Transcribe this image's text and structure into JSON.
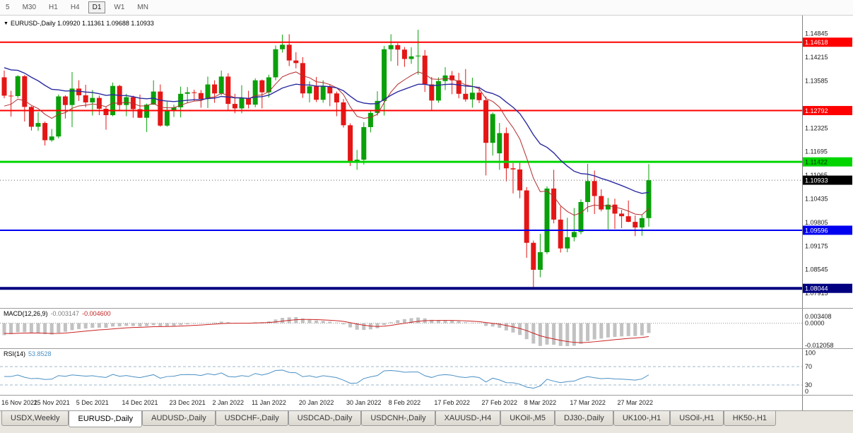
{
  "toolbar": {
    "items": [
      {
        "label": "5",
        "active": false
      },
      {
        "label": "M30",
        "active": false
      },
      {
        "label": "H1",
        "active": false
      },
      {
        "label": "H4",
        "active": false
      },
      {
        "label": "D1",
        "active": true
      },
      {
        "label": "W1",
        "active": false
      },
      {
        "label": "MN",
        "active": false
      }
    ]
  },
  "chart_data": {
    "type": "candlestick",
    "symbol": "EURUSD-,Daily",
    "header": "EURUSD-,Daily  1.09920 1.11361 1.09688 1.10933",
    "ohlc_display": [
      "1.09920",
      "1.11361",
      "1.09688",
      "1.10933"
    ],
    "price_range": [
      1.0752,
      1.1533
    ],
    "colors": {
      "bull": "#0AA00A",
      "bear": "#E41616"
    },
    "y_axis_ticks": [
      "1.14845",
      "1.14215",
      "1.13585",
      "1.12325",
      "1.11695",
      "1.11065",
      "1.10435",
      "1.09805",
      "1.09175",
      "1.08545",
      "1.07915"
    ],
    "hlines": [
      {
        "price": 1.14618,
        "label": "1.14618",
        "color": "#FF0000",
        "width": 2,
        "text_color": "#FFFFFF"
      },
      {
        "price": 1.12792,
        "label": "1.12792",
        "color": "#FF0000",
        "width": 2,
        "text_color": "#FFFFFF"
      },
      {
        "price": 1.11422,
        "label": "1.11422",
        "color": "#00D500",
        "width": 3,
        "text_color": "#003300"
      },
      {
        "price": 1.09596,
        "label": "1.09596",
        "color": "#0000F0",
        "width": 2,
        "text_color": "#FFFFFF"
      },
      {
        "price": 1.08044,
        "label": "1.08044",
        "color": "#000080",
        "width": 4,
        "text_color": "#FFFFFF"
      }
    ],
    "current_price": {
      "price": 1.10933,
      "label": "1.10933",
      "bg": "#000000",
      "text_color": "#FFFFFF"
    },
    "moving_averages": [
      {
        "name": "ma-fast-red",
        "color": "#B22E2E",
        "period": 10,
        "seed": 1.1285,
        "width": 1
      },
      {
        "name": "ma-slow-blue",
        "color": "#2B2BA0",
        "period": 25,
        "seed": 1.14,
        "width": 1.4
      }
    ],
    "x_labels": [
      {
        "bar": 0,
        "label": "16 Nov 2021"
      },
      {
        "bar": 7,
        "label": "25 Nov 2021"
      },
      {
        "bar": 13,
        "label": "5 Dec 2021"
      },
      {
        "bar": 20,
        "label": "14 Dec 2021"
      },
      {
        "bar": 27,
        "label": "23 Dec 2021"
      },
      {
        "bar": 33,
        "label": "2 Jan 2022"
      },
      {
        "bar": 39,
        "label": "11 Jan 2022"
      },
      {
        "bar": 46,
        "label": "20 Jan 2022"
      },
      {
        "bar": 53,
        "label": "30 Jan 2022"
      },
      {
        "bar": 59,
        "label": "8 Feb 2022"
      },
      {
        "bar": 66,
        "label": "17 Feb 2022"
      },
      {
        "bar": 73,
        "label": "27 Feb 2022"
      },
      {
        "bar": 79,
        "label": "8 Mar 2022"
      },
      {
        "bar": 86,
        "label": "17 Mar 2022"
      },
      {
        "bar": 93,
        "label": "27 Mar 2022"
      }
    ],
    "candles": [
      [
        1.1368,
        1.1386,
        1.1312,
        1.1319
      ],
      [
        1.1319,
        1.1332,
        1.1263,
        1.1318
      ],
      [
        1.1318,
        1.1374,
        1.1313,
        1.1371
      ],
      [
        1.1371,
        1.1374,
        1.125,
        1.1289
      ],
      [
        1.1289,
        1.1291,
        1.1226,
        1.1236
      ],
      [
        1.1236,
        1.1275,
        1.1225,
        1.1246
      ],
      [
        1.1246,
        1.125,
        1.1186,
        1.12
      ],
      [
        1.12,
        1.123,
        1.1196,
        1.121
      ],
      [
        1.121,
        1.1322,
        1.1205,
        1.1317
      ],
      [
        1.1317,
        1.132,
        1.1258,
        1.1294
      ],
      [
        1.1294,
        1.1382,
        1.1235,
        1.1338
      ],
      [
        1.1338,
        1.136,
        1.1305,
        1.132
      ],
      [
        1.132,
        1.1348,
        1.1288,
        1.1301
      ],
      [
        1.1301,
        1.1334,
        1.1266,
        1.1313
      ],
      [
        1.1313,
        1.1319,
        1.1267,
        1.1284
      ],
      [
        1.1284,
        1.129,
        1.1228,
        1.1267
      ],
      [
        1.1267,
        1.1354,
        1.1264,
        1.1345
      ],
      [
        1.1345,
        1.1348,
        1.128,
        1.1294
      ],
      [
        1.1294,
        1.1324,
        1.1264,
        1.1315
      ],
      [
        1.1315,
        1.1319,
        1.126,
        1.1283
      ],
      [
        1.1283,
        1.1322,
        1.1259,
        1.126
      ],
      [
        1.126,
        1.1298,
        1.1222,
        1.1295
      ],
      [
        1.1295,
        1.136,
        1.1295,
        1.133
      ],
      [
        1.133,
        1.1349,
        1.1236,
        1.1239
      ],
      [
        1.1239,
        1.1303,
        1.1236,
        1.128
      ],
      [
        1.128,
        1.1295,
        1.1262,
        1.1288
      ],
      [
        1.1288,
        1.1343,
        1.1261,
        1.1324
      ],
      [
        1.1324,
        1.1342,
        1.1299,
        1.1328
      ],
      [
        1.1328,
        1.1335,
        1.1305,
        1.1326
      ],
      [
        1.1326,
        1.1334,
        1.1287,
        1.131
      ],
      [
        1.131,
        1.137,
        1.1286,
        1.1349
      ],
      [
        1.1349,
        1.136,
        1.13,
        1.1325
      ],
      [
        1.1325,
        1.1386,
        1.132,
        1.137
      ],
      [
        1.137,
        1.1379,
        1.1279,
        1.1297
      ],
      [
        1.1297,
        1.1324,
        1.1272,
        1.1285
      ],
      [
        1.1285,
        1.1347,
        1.1272,
        1.1313
      ],
      [
        1.1313,
        1.1332,
        1.1285,
        1.1295
      ],
      [
        1.1295,
        1.1365,
        1.1288,
        1.136
      ],
      [
        1.136,
        1.1362,
        1.1285,
        1.1328
      ],
      [
        1.1328,
        1.1375,
        1.1314,
        1.1368
      ],
      [
        1.1368,
        1.1453,
        1.136,
        1.1443
      ],
      [
        1.1443,
        1.1482,
        1.1434,
        1.1455
      ],
      [
        1.1455,
        1.1483,
        1.1398,
        1.1413
      ],
      [
        1.1413,
        1.1435,
        1.1392,
        1.1406
      ],
      [
        1.1406,
        1.1422,
        1.1313,
        1.1325
      ],
      [
        1.1325,
        1.1357,
        1.1301,
        1.1344
      ],
      [
        1.1344,
        1.1369,
        1.1302,
        1.1308
      ],
      [
        1.1308,
        1.136,
        1.13,
        1.1344
      ],
      [
        1.1344,
        1.1349,
        1.1291,
        1.1325
      ],
      [
        1.1325,
        1.133,
        1.1264,
        1.1301
      ],
      [
        1.1301,
        1.131,
        1.1234,
        1.124
      ],
      [
        1.124,
        1.1245,
        1.1131,
        1.1144
      ],
      [
        1.1144,
        1.1174,
        1.1121,
        1.1148
      ],
      [
        1.1148,
        1.1248,
        1.1135,
        1.1235
      ],
      [
        1.1235,
        1.1279,
        1.1221,
        1.1273
      ],
      [
        1.1273,
        1.1331,
        1.1266,
        1.1305
      ],
      [
        1.1305,
        1.1452,
        1.1266,
        1.1443
      ],
      [
        1.1443,
        1.1483,
        1.1411,
        1.1454
      ],
      [
        1.1454,
        1.1459,
        1.1399,
        1.1442
      ],
      [
        1.1442,
        1.1449,
        1.1396,
        1.1417
      ],
      [
        1.1417,
        1.1448,
        1.1404,
        1.1424
      ],
      [
        1.1424,
        1.1495,
        1.1375,
        1.1426
      ],
      [
        1.1426,
        1.1441,
        1.1329,
        1.1349
      ],
      [
        1.1349,
        1.1369,
        1.1278,
        1.1306
      ],
      [
        1.1306,
        1.1368,
        1.13,
        1.1358
      ],
      [
        1.1358,
        1.1395,
        1.1334,
        1.1373
      ],
      [
        1.1373,
        1.1385,
        1.1323,
        1.136
      ],
      [
        1.136,
        1.138,
        1.1312,
        1.1324
      ],
      [
        1.1324,
        1.139,
        1.1303,
        1.1309
      ],
      [
        1.1309,
        1.1367,
        1.1287,
        1.1327
      ],
      [
        1.1327,
        1.1343,
        1.1299,
        1.1307
      ],
      [
        1.1307,
        1.1317,
        1.1106,
        1.1193
      ],
      [
        1.1193,
        1.1274,
        1.1159,
        1.127
      ],
      [
        1.1165,
        1.1246,
        1.1121,
        1.1219
      ],
      [
        1.1219,
        1.1234,
        1.109,
        1.1125
      ],
      [
        1.1125,
        1.1139,
        1.1058,
        1.1122
      ],
      [
        1.1122,
        1.1144,
        1.1045,
        1.1066
      ],
      [
        1.1066,
        1.1075,
        1.0886,
        1.0926
      ],
      [
        1.0926,
        1.0932,
        1.0806,
        1.0854
      ],
      [
        1.0854,
        1.095,
        1.0834,
        1.0901
      ],
      [
        1.0901,
        1.1077,
        1.0896,
        1.1071
      ],
      [
        1.1071,
        1.1121,
        1.0978,
        1.0988
      ],
      [
        1.0988,
        1.1023,
        1.09,
        1.0911
      ],
      [
        1.0911,
        1.0993,
        1.0901,
        1.0941
      ],
      [
        1.0941,
        1.1019,
        1.093,
        1.0955
      ],
      [
        1.0955,
        1.1042,
        1.0949,
        1.1035
      ],
      [
        1.1035,
        1.1137,
        1.1008,
        1.1091
      ],
      [
        1.1091,
        1.1119,
        1.1003,
        1.1051
      ],
      [
        1.1051,
        1.1069,
        1.101,
        1.1015
      ],
      [
        1.1015,
        1.1046,
        1.0962,
        1.1028
      ],
      [
        1.1028,
        1.1044,
        1.0963,
        1.1004
      ],
      [
        1.1004,
        1.1014,
        1.0965,
        1.0997
      ],
      [
        1.0997,
        1.1039,
        1.0981,
        1.0982
      ],
      [
        1.0982,
        1.0999,
        1.0944,
        1.0967
      ],
      [
        1.0967,
        1.1,
        1.0945,
        1.0992
      ],
      [
        1.0992,
        1.11361,
        1.09688,
        1.10933
      ]
    ],
    "indicators": {
      "macd": {
        "label": "MACD(12,26,9)",
        "value_main": "-0.003147",
        "value_signal": "-0.004600",
        "axis": [
          "0.003408",
          "0.0000",
          "-0.012058"
        ],
        "histogram_color": "#C2C2C2",
        "signal_color": "#CC2222",
        "render": {
          "fast": 12,
          "slow": 26,
          "signal": 9,
          "seed_fast": 1.1309,
          "seed_slow": 1.1369,
          "seed_signal": -0.0045
        }
      },
      "rsi": {
        "label": "RSI(14)",
        "value": "53.8528",
        "axis": [
          "100",
          "70",
          "30",
          "0"
        ],
        "levels": [
          70,
          30
        ],
        "color": "#4A90C4",
        "level_color": "#9FB8CC",
        "render": {
          "period": 14,
          "seed_gain": 0.0031,
          "seed_loss": 0.0033
        }
      }
    }
  },
  "tabs": {
    "active": "EURUSD-,Daily",
    "items": [
      "USDX,Weekly",
      "EURUSD-,Daily",
      "AUDUSD-,Daily",
      "USDCHF-,Daily",
      "USDCAD-,Daily",
      "USDCNH-,Daily",
      "XAUUSD-,H4",
      "UKOil-,M5",
      "DJ30-,Daily",
      "UK100-,H1",
      "USOil-,H1",
      "HK50-,H1"
    ]
  }
}
